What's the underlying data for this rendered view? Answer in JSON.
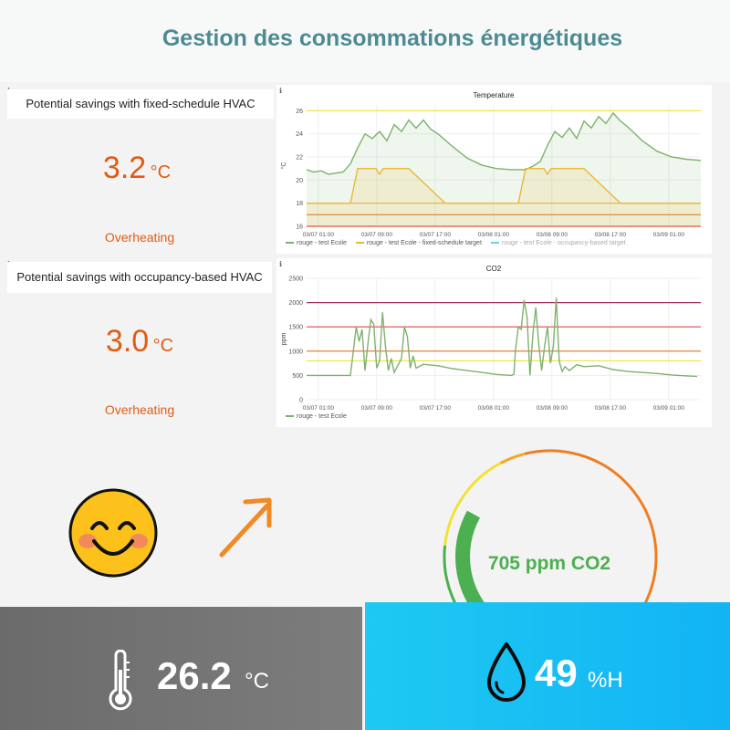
{
  "header": {
    "title": "Gestion des consommations énergétiques"
  },
  "info_icon": "ℹ",
  "panels": {
    "fixed": {
      "title": "Potential savings with fixed-schedule HVAC",
      "value": "3.2",
      "unit": "°C",
      "status": "Overheating"
    },
    "occupancy": {
      "title": "Potential savings with occupancy-based HVAC",
      "value": "3.0",
      "unit": "°C",
      "status": "Overheating"
    }
  },
  "temperature_chart": {
    "title": "Temperature",
    "ylabel": "°C",
    "y_ticks": [
      "26",
      "24",
      "22",
      "20",
      "18",
      "16"
    ],
    "x_ticks": [
      "03/07 01:00",
      "03/07 09:00",
      "03/07 17:00",
      "03/08 01:00",
      "03/08 09:00",
      "03/08 17:00",
      "03/09 01:00"
    ],
    "legend": [
      "rouge - test Ecole",
      "rouge - test Ecole - fixed-schedule target",
      "rouge - test Ecole - occupancy-based target"
    ],
    "colors": {
      "measured": "#7eb26d",
      "fixed": "#eab839",
      "occupancy": "#6ed0e0",
      "thresholds": [
        "#f2e233",
        "#eab839",
        "#e0752d",
        "#e24d42"
      ]
    }
  },
  "co2_chart": {
    "title": "CO2",
    "ylabel": "ppm",
    "y_ticks": [
      "2500",
      "2000",
      "1500",
      "1000",
      "500",
      "0"
    ],
    "x_ticks": [
      "03/07 01:00",
      "03/07 09:00",
      "03/07 17:00",
      "03/08 01:00",
      "03/08 09:00",
      "03/08 17:00",
      "03/09 01:00"
    ],
    "legend": [
      "rouge - test Ecole"
    ],
    "colors": {
      "measured": "#7eb26d",
      "thresholds": [
        "#a03060",
        "#e24d42",
        "#e0752d",
        "#f2e233"
      ]
    }
  },
  "indicators": {
    "mood_icon": "smiling-face-icon",
    "trend_icon": "arrow-up-right-icon",
    "gauge": {
      "text": "705 ppm CO2",
      "value": 705,
      "min": 0,
      "max": 2500,
      "colors": [
        "#4caf50",
        "#f2e233",
        "#f5a623",
        "#ef7d22",
        "#d93a4a"
      ]
    }
  },
  "bottom": {
    "temperature": {
      "value": "26.2",
      "unit": "°C",
      "icon": "thermometer-icon"
    },
    "humidity": {
      "value": "49",
      "unit": "%H",
      "icon": "water-drop-icon"
    }
  },
  "chart_data": [
    {
      "type": "line",
      "title": "Temperature",
      "ylabel": "°C",
      "ylim": [
        16,
        26.5
      ],
      "x": [
        "03/07 01:00",
        "03/07 09:00",
        "03/07 17:00",
        "03/08 01:00",
        "03/08 09:00",
        "03/08 17:00",
        "03/09 01:00"
      ],
      "series": [
        {
          "name": "rouge - test Ecole",
          "points": [
            [
              0,
              20.9
            ],
            [
              1,
              20.7
            ],
            [
              2,
              20.8
            ],
            [
              3,
              20.5
            ],
            [
              4,
              20.6
            ],
            [
              5,
              20.7
            ],
            [
              6,
              21.4
            ],
            [
              7,
              22.8
            ],
            [
              8,
              24.0
            ],
            [
              9,
              23.6
            ],
            [
              10,
              24.2
            ],
            [
              11,
              23.4
            ],
            [
              12,
              24.8
            ],
            [
              13,
              24.2
            ],
            [
              14,
              25.2
            ],
            [
              15,
              24.5
            ],
            [
              16,
              25.2
            ],
            [
              17,
              24.4
            ],
            [
              18,
              24.0
            ],
            [
              20,
              22.9
            ],
            [
              22,
              21.9
            ],
            [
              24,
              21.3
            ],
            [
              26,
              21.0
            ],
            [
              28,
              20.9
            ],
            [
              30,
              20.9
            ],
            [
              31,
              21.2
            ],
            [
              32,
              21.6
            ],
            [
              33,
              23.0
            ],
            [
              34,
              24.2
            ],
            [
              35,
              23.7
            ],
            [
              36,
              24.5
            ],
            [
              37,
              23.6
            ],
            [
              38,
              25.1
            ],
            [
              39,
              24.5
            ],
            [
              40,
              25.5
            ],
            [
              41,
              24.9
            ],
            [
              42,
              25.8
            ],
            [
              43,
              25.1
            ],
            [
              44,
              24.6
            ],
            [
              46,
              23.4
            ],
            [
              48,
              22.5
            ],
            [
              50,
              22.0
            ],
            [
              52,
              21.8
            ],
            [
              54,
              21.7
            ]
          ]
        },
        {
          "name": "rouge - test Ecole - fixed-schedule target",
          "points": [
            [
              0,
              18
            ],
            [
              6,
              18
            ],
            [
              7,
              21
            ],
            [
              9.5,
              21
            ],
            [
              10,
              20.5
            ],
            [
              10.5,
              21
            ],
            [
              14,
              21
            ],
            [
              19,
              18
            ],
            [
              29,
              18
            ],
            [
              30,
              21
            ],
            [
              32.5,
              21
            ],
            [
              33,
              20.5
            ],
            [
              33.5,
              21
            ],
            [
              38,
              21
            ],
            [
              43,
              18
            ],
            [
              54,
              18
            ]
          ]
        },
        {
          "name": "rouge - test Ecole - occupancy-based target",
          "points": []
        }
      ],
      "thresholds": [
        26,
        18,
        17,
        16
      ]
    },
    {
      "type": "line",
      "title": "CO2",
      "ylabel": "ppm",
      "ylim": [
        0,
        2500
      ],
      "x": [
        "03/07 01:00",
        "03/07 09:00",
        "03/07 17:00",
        "03/08 01:00",
        "03/08 09:00",
        "03/08 17:00",
        "03/09 01:00"
      ],
      "series": [
        {
          "name": "rouge - test Ecole",
          "points": [
            [
              0,
              500
            ],
            [
              6,
              500
            ],
            [
              6.4,
              1000
            ],
            [
              6.8,
              1500
            ],
            [
              7.2,
              1200
            ],
            [
              7.6,
              1450
            ],
            [
              8,
              600
            ],
            [
              8.4,
              1150
            ],
            [
              8.8,
              1650
            ],
            [
              9.2,
              1550
            ],
            [
              9.6,
              650
            ],
            [
              10,
              800
            ],
            [
              10.4,
              1800
            ],
            [
              10.8,
              1100
            ],
            [
              11.2,
              600
            ],
            [
              11.6,
              850
            ],
            [
              12,
              560
            ],
            [
              13,
              850
            ],
            [
              13.4,
              1500
            ],
            [
              13.8,
              1300
            ],
            [
              14.2,
              650
            ],
            [
              14.6,
              900
            ],
            [
              15,
              650
            ],
            [
              16,
              730
            ],
            [
              18,
              700
            ],
            [
              20,
              640
            ],
            [
              22,
              600
            ],
            [
              24,
              560
            ],
            [
              26,
              520
            ],
            [
              28,
              500
            ],
            [
              28.4,
              520
            ],
            [
              28.6,
              1000
            ],
            [
              29,
              1500
            ],
            [
              29.4,
              1450
            ],
            [
              29.8,
              2050
            ],
            [
              30.2,
              1700
            ],
            [
              30.6,
              500
            ],
            [
              31,
              1350
            ],
            [
              31.4,
              1900
            ],
            [
              31.8,
              1150
            ],
            [
              32.2,
              600
            ],
            [
              32.6,
              1100
            ],
            [
              33,
              1500
            ],
            [
              33.4,
              750
            ],
            [
              33.8,
              1100
            ],
            [
              34.2,
              2100
            ],
            [
              34.6,
              800
            ],
            [
              35,
              580
            ],
            [
              35.4,
              680
            ],
            [
              36,
              600
            ],
            [
              37,
              720
            ],
            [
              38,
              680
            ],
            [
              40,
              700
            ],
            [
              42,
              620
            ],
            [
              44,
              580
            ],
            [
              46,
              560
            ],
            [
              48,
              540
            ],
            [
              50,
              510
            ],
            [
              52,
              490
            ],
            [
              53.5,
              480
            ]
          ]
        }
      ],
      "thresholds": [
        2000,
        1500,
        1000,
        800
      ]
    }
  ]
}
